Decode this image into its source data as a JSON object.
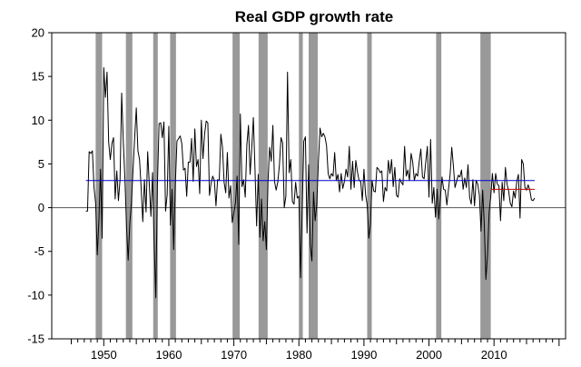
{
  "chart_data": {
    "type": "line",
    "title": "Real GDP growth rate",
    "xlabel": "",
    "ylabel": "",
    "xlim": [
      1942,
      2021
    ],
    "ylim": [
      -15,
      20
    ],
    "x_ticks": [
      1950,
      1960,
      1970,
      1980,
      1990,
      2000,
      2010
    ],
    "x_tick_labels": [
      "1950",
      "1960",
      "1970",
      "1980",
      "1990",
      "2000",
      "2010"
    ],
    "y_ticks": [
      -15,
      -10,
      -5,
      0,
      5,
      10,
      15,
      20
    ],
    "y_tick_labels": [
      "-15",
      "-10",
      "-5",
      "0",
      "5",
      "10",
      "15",
      "20"
    ],
    "grid": false,
    "legend": "none",
    "recessions": [
      {
        "start": 1948.75,
        "end": 1949.75
      },
      {
        "start": 1953.4,
        "end": 1954.4
      },
      {
        "start": 1957.6,
        "end": 1958.3
      },
      {
        "start": 1960.2,
        "end": 1961.1
      },
      {
        "start": 1969.8,
        "end": 1970.9
      },
      {
        "start": 1973.8,
        "end": 1975.2
      },
      {
        "start": 1980.0,
        "end": 1980.6
      },
      {
        "start": 1981.5,
        "end": 1982.9
      },
      {
        "start": 1990.5,
        "end": 1991.2
      },
      {
        "start": 2001.1,
        "end": 2001.9
      },
      {
        "start": 2007.9,
        "end": 2009.5
      }
    ],
    "series": [
      {
        "color": "#000000",
        "points": [
          [
            1947.25,
            -0.4
          ],
          [
            1947.5,
            -0.4
          ],
          [
            1947.75,
            6.4
          ],
          [
            1948.0,
            6.2
          ],
          [
            1948.25,
            6.5
          ],
          [
            1948.5,
            2.3
          ],
          [
            1948.75,
            0.5
          ],
          [
            1949.0,
            -5.4
          ],
          [
            1949.25,
            -1.5
          ],
          [
            1949.5,
            4.4
          ],
          [
            1949.75,
            -3.5
          ],
          [
            1950.0,
            16.0
          ],
          [
            1950.25,
            12.6
          ],
          [
            1950.5,
            15.5
          ],
          [
            1950.75,
            7.5
          ],
          [
            1951.0,
            5.5
          ],
          [
            1951.25,
            7.3
          ],
          [
            1951.5,
            8.0
          ],
          [
            1951.75,
            1.0
          ],
          [
            1952.0,
            4.2
          ],
          [
            1952.25,
            0.8
          ],
          [
            1952.5,
            3.2
          ],
          [
            1952.75,
            13.1
          ],
          [
            1953.0,
            7.6
          ],
          [
            1953.25,
            3.3
          ],
          [
            1953.5,
            -2.2
          ],
          [
            1953.75,
            -6.0
          ],
          [
            1954.0,
            -1.8
          ],
          [
            1954.25,
            0.5
          ],
          [
            1954.5,
            4.4
          ],
          [
            1954.75,
            8.0
          ],
          [
            1955.0,
            11.4
          ],
          [
            1955.25,
            6.5
          ],
          [
            1955.5,
            5.5
          ],
          [
            1955.75,
            2.2
          ],
          [
            1956.0,
            -1.6
          ],
          [
            1956.25,
            3.2
          ],
          [
            1956.5,
            -0.5
          ],
          [
            1956.75,
            6.4
          ],
          [
            1957.0,
            2.6
          ],
          [
            1957.25,
            -1.0
          ],
          [
            1957.5,
            4.0
          ],
          [
            1957.75,
            -4.2
          ],
          [
            1958.0,
            -10.3
          ],
          [
            1958.25,
            2.7
          ],
          [
            1958.5,
            9.6
          ],
          [
            1958.75,
            9.7
          ],
          [
            1959.0,
            8.0
          ],
          [
            1959.25,
            9.8
          ],
          [
            1959.5,
            -0.4
          ],
          [
            1959.75,
            1.5
          ],
          [
            1960.0,
            9.3
          ],
          [
            1960.25,
            -2.0
          ],
          [
            1960.5,
            2.1
          ],
          [
            1960.75,
            -4.8
          ],
          [
            1961.0,
            2.7
          ],
          [
            1961.25,
            7.6
          ],
          [
            1961.5,
            7.9
          ],
          [
            1961.75,
            8.2
          ],
          [
            1962.0,
            7.3
          ],
          [
            1962.25,
            4.3
          ],
          [
            1962.5,
            4.5
          ],
          [
            1962.75,
            1.3
          ],
          [
            1963.0,
            5.2
          ],
          [
            1963.25,
            5.2
          ],
          [
            1963.5,
            7.9
          ],
          [
            1963.75,
            3.0
          ],
          [
            1964.0,
            9.0
          ],
          [
            1964.25,
            4.7
          ],
          [
            1964.5,
            5.5
          ],
          [
            1964.75,
            1.6
          ],
          [
            1965.0,
            10.0
          ],
          [
            1965.25,
            5.6
          ],
          [
            1965.5,
            8.4
          ],
          [
            1965.75,
            9.9
          ],
          [
            1966.0,
            9.7
          ],
          [
            1966.25,
            1.4
          ],
          [
            1966.5,
            2.8
          ],
          [
            1966.75,
            3.6
          ],
          [
            1967.0,
            3.1
          ],
          [
            1967.25,
            0.2
          ],
          [
            1967.5,
            3.2
          ],
          [
            1967.75,
            3.1
          ],
          [
            1968.0,
            8.4
          ],
          [
            1968.25,
            6.9
          ],
          [
            1968.5,
            2.9
          ],
          [
            1968.75,
            1.7
          ],
          [
            1969.0,
            6.3
          ],
          [
            1969.25,
            1.1
          ],
          [
            1969.5,
            2.5
          ],
          [
            1969.75,
            -1.7
          ],
          [
            1970.0,
            -0.6
          ],
          [
            1970.25,
            0.6
          ],
          [
            1970.5,
            3.6
          ],
          [
            1970.75,
            -4.2
          ],
          [
            1971.0,
            10.7
          ],
          [
            1971.25,
            2.4
          ],
          [
            1971.5,
            3.2
          ],
          [
            1971.75,
            1.2
          ],
          [
            1972.0,
            7.2
          ],
          [
            1972.25,
            9.4
          ],
          [
            1972.5,
            3.8
          ],
          [
            1972.75,
            6.8
          ],
          [
            1973.0,
            10.3
          ],
          [
            1973.25,
            4.4
          ],
          [
            1973.5,
            -2.1
          ],
          [
            1973.75,
            3.8
          ],
          [
            1974.0,
            -3.4
          ],
          [
            1974.25,
            1.0
          ],
          [
            1974.5,
            -3.8
          ],
          [
            1974.75,
            -1.6
          ],
          [
            1975.0,
            -4.8
          ],
          [
            1975.25,
            3.0
          ],
          [
            1975.5,
            6.9
          ],
          [
            1975.75,
            5.3
          ],
          [
            1976.0,
            9.4
          ],
          [
            1976.25,
            3.0
          ],
          [
            1976.5,
            2.0
          ],
          [
            1976.75,
            2.9
          ],
          [
            1977.0,
            4.8
          ],
          [
            1977.25,
            8.0
          ],
          [
            1977.5,
            7.4
          ],
          [
            1977.75,
            0.0
          ],
          [
            1978.0,
            1.3
          ],
          [
            1978.25,
            15.5
          ],
          [
            1978.5,
            4.0
          ],
          [
            1978.75,
            5.5
          ],
          [
            1979.0,
            0.7
          ],
          [
            1979.25,
            0.4
          ],
          [
            1979.5,
            2.9
          ],
          [
            1979.75,
            1.1
          ],
          [
            1980.0,
            1.3
          ],
          [
            1980.25,
            -8.0
          ],
          [
            1980.5,
            -0.5
          ],
          [
            1980.75,
            7.6
          ],
          [
            1981.0,
            8.1
          ],
          [
            1981.25,
            -2.9
          ],
          [
            1981.5,
            4.9
          ],
          [
            1981.75,
            -4.3
          ],
          [
            1982.0,
            -6.1
          ],
          [
            1982.25,
            1.8
          ],
          [
            1982.5,
            -1.5
          ],
          [
            1982.75,
            0.4
          ],
          [
            1983.0,
            5.3
          ],
          [
            1983.25,
            9.1
          ],
          [
            1983.5,
            8.1
          ],
          [
            1983.75,
            8.5
          ],
          [
            1984.0,
            8.1
          ],
          [
            1984.25,
            7.1
          ],
          [
            1984.5,
            3.9
          ],
          [
            1984.75,
            3.3
          ],
          [
            1985.0,
            3.9
          ],
          [
            1985.25,
            3.6
          ],
          [
            1985.5,
            6.3
          ],
          [
            1985.75,
            3.1
          ],
          [
            1986.0,
            3.8
          ],
          [
            1986.25,
            1.8
          ],
          [
            1986.5,
            3.9
          ],
          [
            1986.75,
            2.2
          ],
          [
            1987.0,
            3.0
          ],
          [
            1987.25,
            4.4
          ],
          [
            1987.5,
            3.5
          ],
          [
            1987.75,
            7.0
          ],
          [
            1988.0,
            2.1
          ],
          [
            1988.25,
            5.3
          ],
          [
            1988.5,
            2.3
          ],
          [
            1988.75,
            5.4
          ],
          [
            1989.0,
            4.1
          ],
          [
            1989.25,
            3.1
          ],
          [
            1989.5,
            3.0
          ],
          [
            1989.75,
            0.8
          ],
          [
            1990.0,
            4.4
          ],
          [
            1990.25,
            1.5
          ],
          [
            1990.5,
            0.3
          ],
          [
            1990.75,
            -3.5
          ],
          [
            1991.0,
            -1.9
          ],
          [
            1991.25,
            3.1
          ],
          [
            1991.5,
            1.9
          ],
          [
            1991.75,
            1.8
          ],
          [
            1992.0,
            4.6
          ],
          [
            1992.25,
            4.4
          ],
          [
            1992.5,
            4.0
          ],
          [
            1992.75,
            4.2
          ],
          [
            1993.0,
            0.7
          ],
          [
            1993.25,
            2.3
          ],
          [
            1993.5,
            1.9
          ],
          [
            1993.75,
            5.4
          ],
          [
            1994.0,
            3.9
          ],
          [
            1994.25,
            5.5
          ],
          [
            1994.5,
            2.4
          ],
          [
            1994.75,
            4.6
          ],
          [
            1995.0,
            1.4
          ],
          [
            1995.25,
            1.2
          ],
          [
            1995.5,
            3.3
          ],
          [
            1995.75,
            2.9
          ],
          [
            1996.0,
            2.6
          ],
          [
            1996.25,
            7.0
          ],
          [
            1996.5,
            3.6
          ],
          [
            1996.75,
            4.3
          ],
          [
            1997.0,
            3.1
          ],
          [
            1997.25,
            6.2
          ],
          [
            1997.5,
            5.2
          ],
          [
            1997.75,
            3.1
          ],
          [
            1998.0,
            3.9
          ],
          [
            1998.25,
            3.6
          ],
          [
            1998.5,
            5.3
          ],
          [
            1998.75,
            6.7
          ],
          [
            1999.0,
            3.5
          ],
          [
            1999.25,
            3.3
          ],
          [
            1999.5,
            5.2
          ],
          [
            1999.75,
            7.0
          ],
          [
            2000.0,
            1.2
          ],
          [
            2000.25,
            7.8
          ],
          [
            2000.5,
            0.5
          ],
          [
            2000.75,
            2.3
          ],
          [
            2001.0,
            -1.1
          ],
          [
            2001.25,
            2.1
          ],
          [
            2001.5,
            -1.3
          ],
          [
            2001.75,
            1.1
          ],
          [
            2002.0,
            3.5
          ],
          [
            2002.25,
            2.1
          ],
          [
            2002.5,
            2.0
          ],
          [
            2002.75,
            0.3
          ],
          [
            2003.0,
            2.1
          ],
          [
            2003.25,
            3.8
          ],
          [
            2003.5,
            6.9
          ],
          [
            2003.75,
            4.8
          ],
          [
            2004.0,
            2.3
          ],
          [
            2004.25,
            3.0
          ],
          [
            2004.5,
            3.7
          ],
          [
            2004.75,
            3.5
          ],
          [
            2005.0,
            4.3
          ],
          [
            2005.25,
            2.1
          ],
          [
            2005.5,
            3.4
          ],
          [
            2005.75,
            2.3
          ],
          [
            2006.0,
            4.9
          ],
          [
            2006.25,
            1.2
          ],
          [
            2006.5,
            0.4
          ],
          [
            2006.75,
            3.2
          ],
          [
            2007.0,
            0.2
          ],
          [
            2007.25,
            3.1
          ],
          [
            2007.5,
            2.7
          ],
          [
            2007.75,
            1.4
          ],
          [
            2008.0,
            -2.7
          ],
          [
            2008.25,
            2.0
          ],
          [
            2008.5,
            -1.9
          ],
          [
            2008.75,
            -8.2
          ],
          [
            2009.0,
            -5.4
          ],
          [
            2009.25,
            -0.5
          ],
          [
            2009.5,
            1.3
          ],
          [
            2009.75,
            3.9
          ],
          [
            2010.0,
            1.7
          ],
          [
            2010.25,
            3.9
          ],
          [
            2010.5,
            2.7
          ],
          [
            2010.75,
            2.5
          ],
          [
            2011.0,
            -1.5
          ],
          [
            2011.25,
            2.9
          ],
          [
            2011.5,
            0.8
          ],
          [
            2011.75,
            4.6
          ],
          [
            2012.0,
            2.7
          ],
          [
            2012.25,
            1.9
          ],
          [
            2012.5,
            0.5
          ],
          [
            2012.75,
            0.1
          ],
          [
            2013.0,
            1.9
          ],
          [
            2013.25,
            1.1
          ],
          [
            2013.5,
            3.0
          ],
          [
            2013.75,
            3.8
          ],
          [
            2014.0,
            -1.2
          ],
          [
            2014.25,
            5.5
          ],
          [
            2014.5,
            5.0
          ],
          [
            2014.75,
            2.3
          ],
          [
            2015.0,
            2.0
          ],
          [
            2015.25,
            2.6
          ],
          [
            2015.5,
            2.0
          ],
          [
            2015.75,
            0.9
          ],
          [
            2016.0,
            0.8
          ],
          [
            2016.25,
            1.1
          ]
        ]
      },
      {
        "color": "#0000cc",
        "points": [
          [
            1947.25,
            3.1
          ],
          [
            2016.25,
            3.1
          ]
        ]
      },
      {
        "color": "#cc0000",
        "points": [
          [
            2009.5,
            2.1
          ],
          [
            2016.25,
            2.1
          ]
        ]
      }
    ]
  }
}
